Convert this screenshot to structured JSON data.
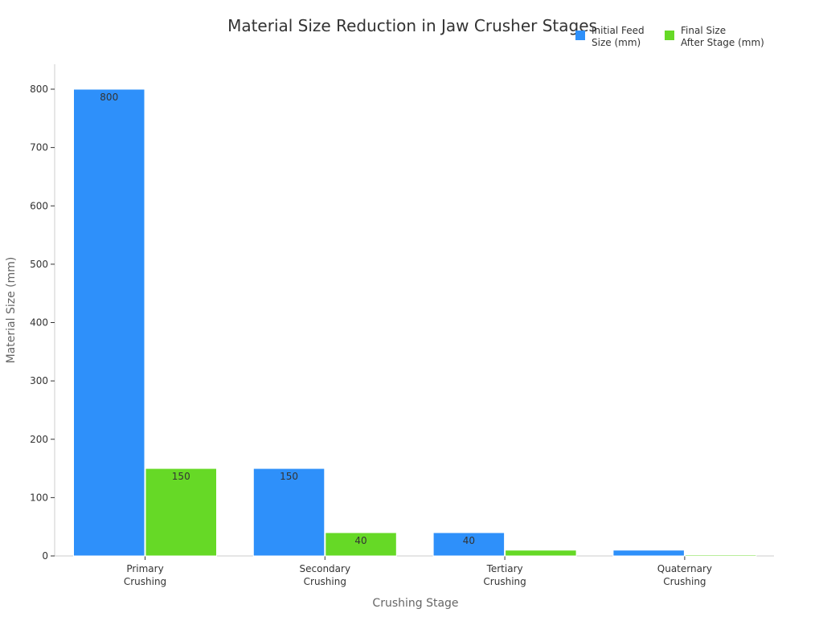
{
  "chart_data": {
    "type": "bar",
    "title": "Material Size Reduction in Jaw Crusher Stages",
    "xlabel": "Crushing Stage",
    "ylabel": "Material Size (mm)",
    "categories": [
      "Primary\nCrushing",
      "Secondary\nCrushing",
      "Tertiary\nCrushing",
      "Quaternary\nCrushing"
    ],
    "series": [
      {
        "name": "Initial Feed\nSize (mm)",
        "color": "#2e90fa",
        "values": [
          800,
          150,
          40,
          10
        ],
        "labels": [
          "800",
          "150",
          "40",
          ""
        ]
      },
      {
        "name": "Final Size\nAfter Stage (mm)",
        "color": "#66d926",
        "values": [
          150,
          40,
          10,
          2
        ],
        "labels": [
          "150",
          "40",
          "",
          ""
        ]
      }
    ],
    "ylim": [
      0,
      840
    ],
    "yticks": [
      0,
      100,
      200,
      300,
      400,
      500,
      600,
      700,
      800
    ],
    "grid": false,
    "legend_position": "top-right"
  }
}
